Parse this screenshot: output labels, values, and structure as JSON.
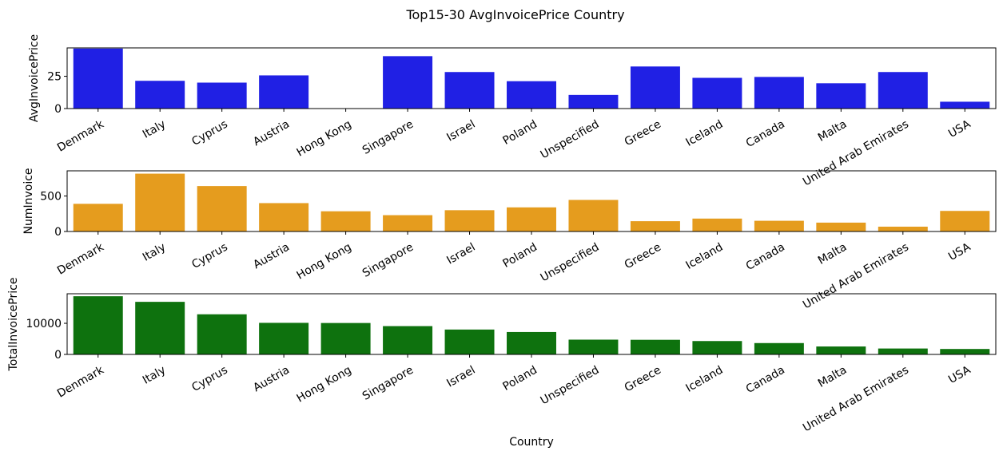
{
  "figure_title": "Top15-30 AvgInvoicePrice Country",
  "chart_data": [
    {
      "type": "bar",
      "title": "",
      "xlabel": "",
      "ylabel": "AvgInvoicePrice",
      "color": "#2020e4",
      "ylim": [
        0,
        47
      ],
      "yticks": [
        0,
        25
      ],
      "grid": false,
      "categories": [
        "Denmark",
        "Italy",
        "Cyprus",
        "Austria",
        "Hong Kong",
        "Singapore",
        "Israel",
        "Poland",
        "Unspecified",
        "Greece",
        "Iceland",
        "Canada",
        "Malta",
        "United Arab Emirates",
        "USA"
      ],
      "values": [
        46.5,
        21.5,
        20.1,
        25.7,
        0,
        40.6,
        28.3,
        21.2,
        10.6,
        32.6,
        23.8,
        24.5,
        19.6,
        28.3,
        5.3
      ]
    },
    {
      "type": "bar",
      "title": "",
      "xlabel": "",
      "ylabel": "NumInvoice",
      "color": "#e59c1e",
      "ylim": [
        0,
        855
      ],
      "yticks": [
        0,
        500
      ],
      "grid": false,
      "categories": [
        "Denmark",
        "Italy",
        "Cyprus",
        "Austria",
        "Hong Kong",
        "Singapore",
        "Israel",
        "Poland",
        "Unspecified",
        "Greece",
        "Iceland",
        "Canada",
        "Malta",
        "United Arab Emirates",
        "USA"
      ],
      "values": [
        390,
        815,
        640,
        400,
        285,
        230,
        300,
        340,
        445,
        145,
        182,
        151,
        125,
        68,
        290
      ]
    },
    {
      "type": "bar",
      "title": "",
      "xlabel": "Country",
      "ylabel": "TotalInvoicePrice",
      "color": "#0e720e",
      "ylim": [
        0,
        19500
      ],
      "yticks": [
        0,
        10000
      ],
      "grid": false,
      "categories": [
        "Denmark",
        "Italy",
        "Cyprus",
        "Austria",
        "Hong Kong",
        "Singapore",
        "Israel",
        "Poland",
        "Unspecified",
        "Greece",
        "Iceland",
        "Canada",
        "Malta",
        "United Arab Emirates",
        "USA"
      ],
      "values": [
        18700,
        16900,
        12900,
        10150,
        10100,
        9100,
        8000,
        7200,
        4750,
        4700,
        4300,
        3650,
        2550,
        1900,
        1750
      ]
    }
  ]
}
